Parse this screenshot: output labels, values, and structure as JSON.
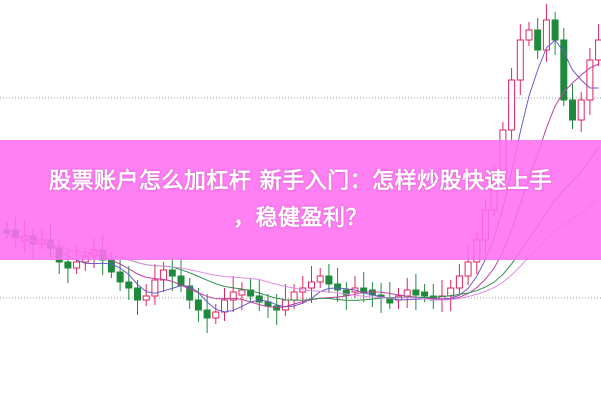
{
  "article": {
    "title_line1": "股票账户怎么加杠杆 新手入门：怎样炒股快速上手",
    "title_line2": "，稳健盈利？"
  },
  "colors": {
    "banner": "#ff6ef0",
    "up_candle": "#e0245e",
    "down_candle": "#1f8a3c"
  }
}
